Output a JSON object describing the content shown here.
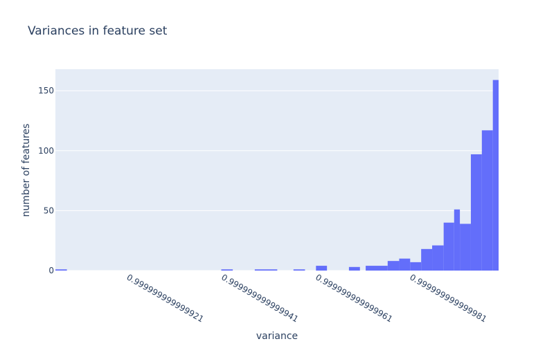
{
  "chart_data": {
    "type": "histogram",
    "title": "Variances in feature set",
    "x_label": "variance",
    "y_label": "number of features",
    "bins": [
      0.999999999999906,
      0.9999999999999084,
      0.9999999999999412,
      0.9999999999999436,
      0.9999999999999483,
      0.999999999999953,
      0.9999999999999565,
      0.9999999999999589,
      0.9999999999999613,
      0.9999999999999636,
      0.9999999999999682,
      0.9999999999999706,
      0.9999999999999718,
      0.9999999999999765,
      0.9999999999999789,
      0.9999999999999812,
      0.9999999999999836,
      0.9999999999999859,
      0.9999999999999883,
      0.9999999999999906,
      0.9999999999999918,
      0.9999999999999941,
      0.9999999999999964,
      0.9999999999999988,
      1
    ],
    "values": [
      1,
      0,
      1,
      0,
      1,
      0,
      1,
      0,
      4,
      0,
      3,
      0,
      4,
      8,
      10,
      7,
      18,
      21,
      40,
      51,
      39,
      97,
      117,
      159
    ],
    "color": "#636efa",
    "xlim": [
      0.999999999999906,
      1
    ],
    "xticks": [
      0.999999999999921,
      0.999999999999941,
      0.999999999999961,
      0.999999999999981
    ],
    "ylim": [
      0,
      168
    ],
    "yticks": [
      0,
      50,
      100,
      150
    ],
    "grid": true
  }
}
